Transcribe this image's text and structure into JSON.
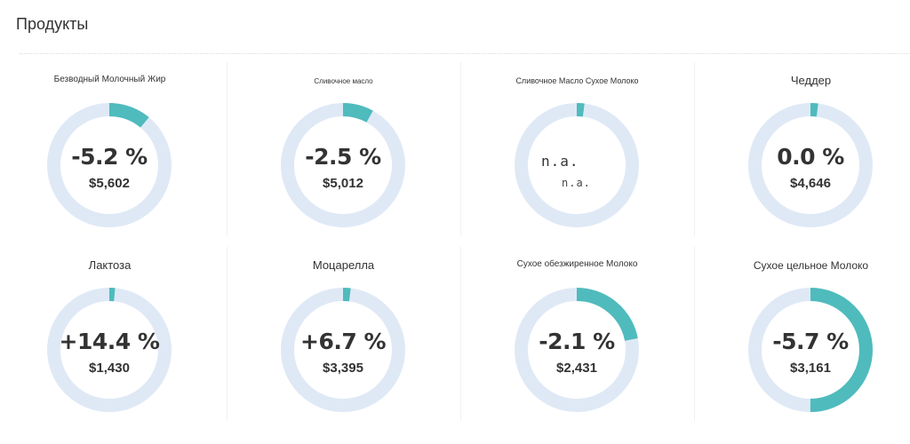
{
  "header": {
    "title": "Продукты"
  },
  "colors": {
    "track": "#dfe9f6",
    "accent": "#4fbbbd"
  },
  "products": [
    {
      "name": "Безводный Молочный Жир",
      "change": "-5.2 %",
      "price": "$5,602",
      "fill": 0.11
    },
    {
      "name": "Сливочное масло",
      "change": "-2.5 %",
      "price": "$5,012",
      "fill": 0.08
    },
    {
      "name": "Сливочное Масло Сухое Молоко",
      "change_main": "n.a.",
      "change_sub": "n.a.",
      "fill": 0.02
    },
    {
      "name": "Чеддер",
      "change": "0.0 %",
      "price": "$4,646",
      "fill": 0.02
    },
    {
      "name": "Лактоза",
      "change": "+14.4 %",
      "price": "$1,430",
      "fill": 0.015
    },
    {
      "name": "Моцарелла",
      "change": "+6.7 %",
      "price": "$3,395",
      "fill": 0.02
    },
    {
      "name": "Сухое обезжиренное Молоко",
      "change": "-2.1 %",
      "price": "$2,431",
      "fill": 0.22
    },
    {
      "name": "Сухое цельное Молоко",
      "change": "-5.7 %",
      "price": "$3,161",
      "fill": 0.5
    }
  ]
}
